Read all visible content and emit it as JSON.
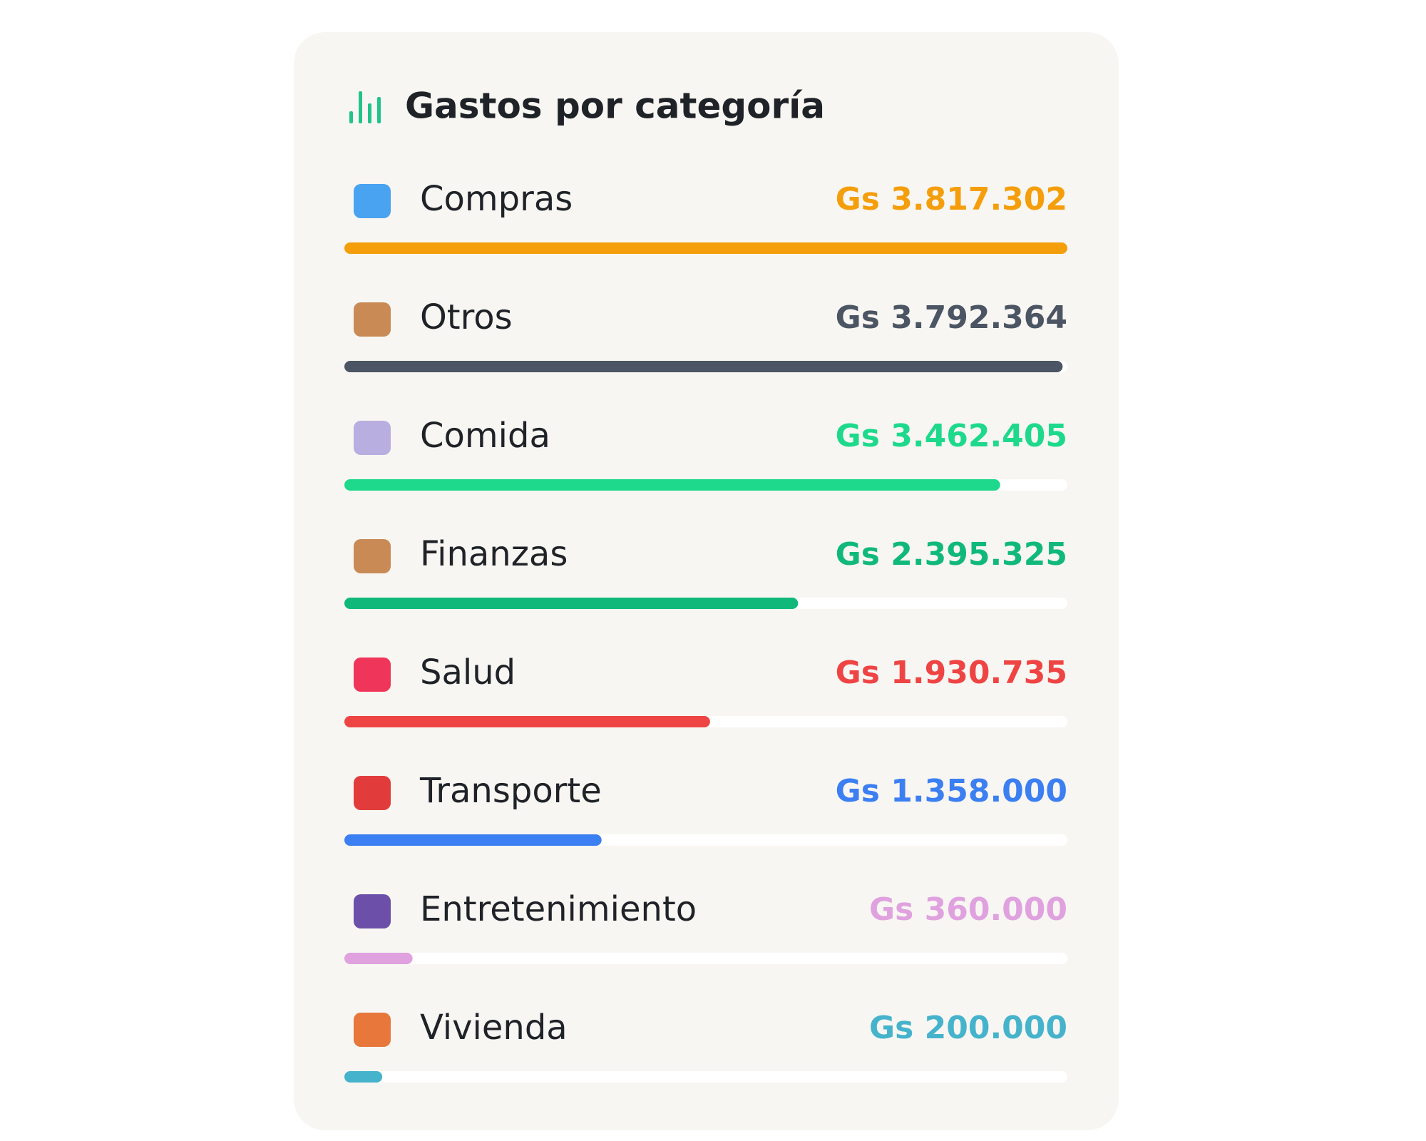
{
  "chart_data": {
    "type": "hbar",
    "title": "Gastos por categoría",
    "categories": [
      "Compras",
      "Otros",
      "Comida",
      "Finanzas",
      "Salud",
      "Transporte",
      "Entretenimiento",
      "Vivienda"
    ],
    "values": [
      3817302,
      3792364,
      3462405,
      2395325,
      1930735,
      1358000,
      360000,
      200000
    ],
    "value_labels": [
      "Gs 3.817.302",
      "Gs 3.792.364",
      "Gs 3.462.405",
      "Gs 2.395.325",
      "Gs 1.930.735",
      "Gs 1.358.000",
      "Gs 360.000",
      "Gs 200.000"
    ],
    "colors": [
      "#f59e0b",
      "#4b5563",
      "#1ed98c",
      "#10b97a",
      "#ef4444",
      "#3b7ff2",
      "#dfa2df",
      "#46b3cc"
    ]
  }
}
